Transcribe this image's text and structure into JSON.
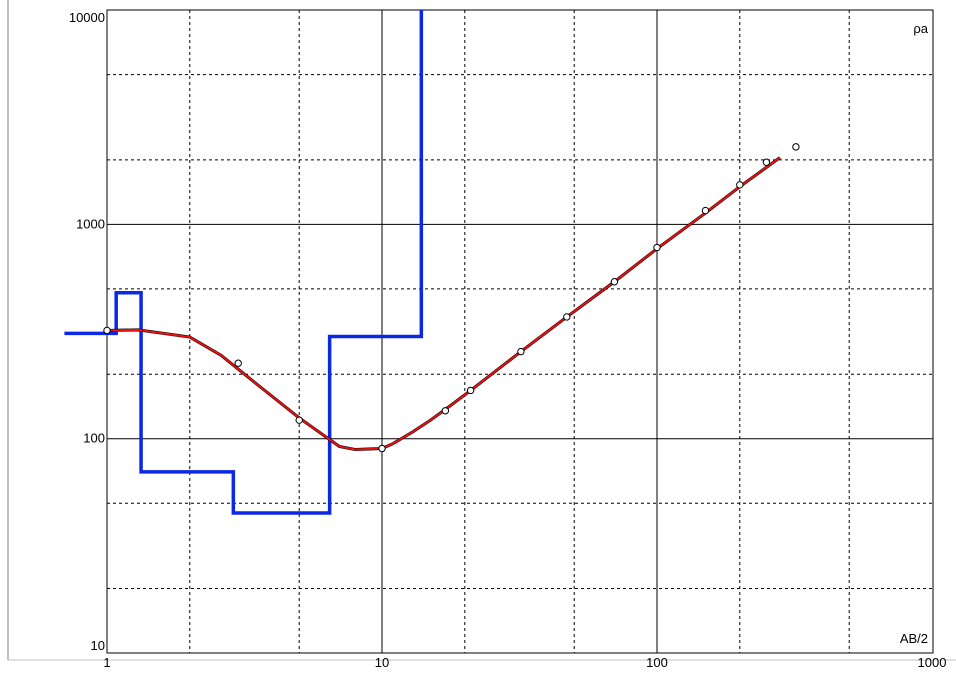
{
  "chart_data": {
    "type": "line",
    "x_scale": "log",
    "y_scale": "log",
    "xlim": [
      1,
      1100
    ],
    "ylim": [
      10,
      10500
    ],
    "x_ticks": [
      "1",
      "10",
      "100",
      "1000"
    ],
    "y_ticks": [
      "10",
      "100",
      "1000",
      "10000"
    ],
    "xlabel": "AB/2",
    "ylabel": "ρa",
    "grid": true,
    "colors": {
      "model": "#0a28e6",
      "fit": "#e81010",
      "observed": "#000000",
      "grid": "#000000"
    },
    "series": [
      {
        "role": "layered-model",
        "style": "step",
        "x": [
          0.7,
          1.08,
          1.08,
          1.33,
          1.33,
          2.88,
          2.88,
          6.45,
          6.45,
          13.9,
          13.9,
          1100
        ],
        "y": [
          310,
          310,
          480,
          480,
          70,
          70,
          45,
          45,
          300,
          300,
          10500,
          10500
        ]
      },
      {
        "role": "calculated-curve",
        "style": "line",
        "x": [
          1,
          1.3,
          2,
          2.6,
          3.5,
          5,
          7,
          8,
          10,
          11,
          13,
          15,
          17,
          21,
          32,
          47,
          70,
          100,
          150,
          200,
          280
        ],
        "y": [
          320,
          322,
          298,
          245,
          180,
          125,
          92,
          89,
          90,
          95,
          108,
          122,
          137,
          168,
          255,
          370,
          540,
          770,
          1130,
          1500,
          2050
        ]
      },
      {
        "role": "observed",
        "style": "markers",
        "x": [
          1,
          3,
          5,
          10,
          17,
          21,
          32,
          47,
          70,
          100,
          150,
          200,
          250,
          320
        ],
        "y": [
          320,
          225,
          122,
          90,
          135,
          168,
          255,
          370,
          540,
          780,
          1160,
          1530,
          1950,
          2300
        ]
      }
    ]
  }
}
